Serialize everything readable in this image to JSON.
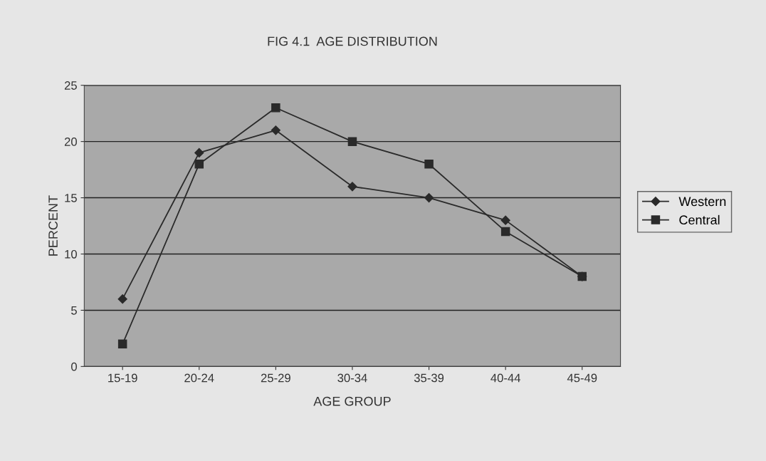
{
  "chart_data": {
    "type": "line",
    "title": "FIG 4.1  AGE DISTRIBUTION",
    "xlabel": "AGE GROUP",
    "ylabel": "PERCENT",
    "categories": [
      "15-19",
      "20-24",
      "25-29",
      "30-34",
      "35-39",
      "40-44",
      "45-49"
    ],
    "series": [
      {
        "name": "Western",
        "color": "#2a2a2a",
        "marker": "diamond",
        "values": [
          6,
          19,
          21,
          16,
          15,
          13,
          8
        ]
      },
      {
        "name": "Central",
        "color": "#2a2a2a",
        "marker": "square",
        "values": [
          2,
          18,
          23,
          20,
          18,
          12,
          8
        ]
      }
    ],
    "ylim": [
      0,
      25
    ],
    "yticks": [
      0,
      5,
      10,
      15,
      20,
      25
    ],
    "grid": "y",
    "legend": "right",
    "line_style": "solid"
  }
}
